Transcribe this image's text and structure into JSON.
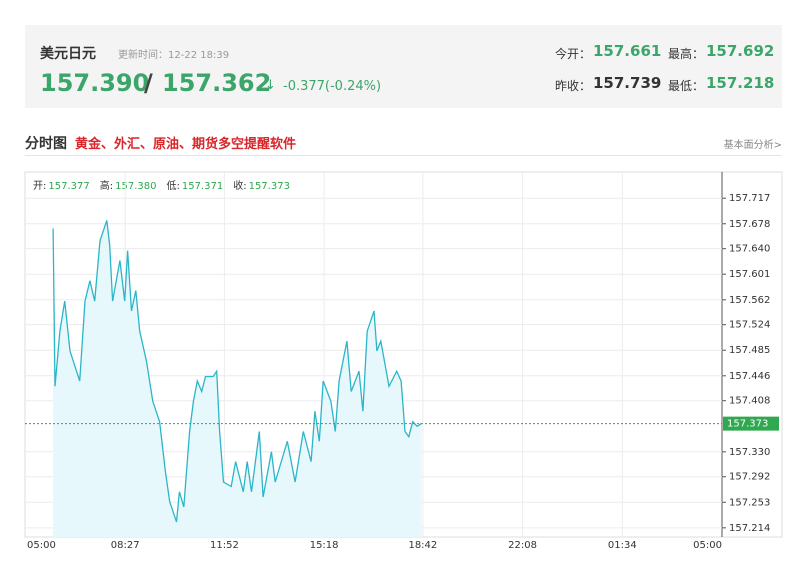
{
  "header": {
    "name": "美元日元",
    "update_time": "更新时间：12-22 18:39",
    "bid": "157.390",
    "separator": "/",
    "ask": "157.362",
    "arrow": "↓",
    "change": "-0.377(-0.24%)",
    "stats": [
      {
        "label": "今开：",
        "value": "157.661"
      },
      {
        "label": "最高：",
        "value": "157.692"
      },
      {
        "label": "昨收：",
        "value": "157.739"
      },
      {
        "label": "最低：",
        "value": "157.218"
      }
    ]
  },
  "section": {
    "title": "分时图",
    "promo": "黄金、外汇、原油、期货多空提醒软件",
    "link": "基本面分析>"
  },
  "quote_bar": [
    {
      "label": "开:",
      "value": "157.377"
    },
    {
      "label": "高:",
      "value": "157.380"
    },
    {
      "label": "低:",
      "value": "157.371"
    },
    {
      "label": "收:",
      "value": "157.373"
    }
  ],
  "chart_data": {
    "type": "line",
    "color": "#2bb5c9",
    "fill": "#e6f8fb",
    "grid": true,
    "x": [
      "05:58",
      "06:02",
      "06:12",
      "06:22",
      "06:33",
      "06:53",
      "07:04",
      "07:14",
      "07:24",
      "07:35",
      "07:49",
      "07:55",
      "08:01",
      "08:16",
      "08:26",
      "08:32",
      "08:40",
      "08:49",
      "08:57",
      "09:11",
      "09:24",
      "09:38",
      "09:50",
      "09:59",
      "10:13",
      "10:19",
      "10:28",
      "10:40",
      "10:48",
      "10:56",
      "11:05",
      "11:13",
      "11:29",
      "11:36",
      "11:42",
      "11:50",
      "12:06",
      "12:15",
      "12:31",
      "12:39",
      "12:48",
      "13:04",
      "13:12",
      "13:29",
      "13:37",
      "14:02",
      "14:18",
      "14:35",
      "14:51",
      "14:59",
      "15:08",
      "15:16",
      "15:32",
      "15:41",
      "15:49",
      "16:05",
      "16:14",
      "16:30",
      "16:38",
      "16:47",
      "17:01",
      "17:07",
      "17:15",
      "17:32",
      "17:48",
      "17:57",
      "18:05",
      "18:13",
      "18:21",
      "18:30",
      "18:39"
    ],
    "values": [
      157.671,
      157.43,
      157.514,
      157.56,
      157.484,
      157.438,
      157.56,
      157.591,
      157.56,
      157.652,
      157.683,
      157.645,
      157.56,
      157.622,
      157.56,
      157.637,
      157.545,
      157.576,
      157.514,
      157.468,
      157.407,
      157.376,
      157.3,
      157.254,
      157.223,
      157.269,
      157.246,
      157.361,
      157.407,
      157.438,
      157.422,
      157.445,
      157.445,
      157.453,
      157.361,
      157.284,
      157.277,
      157.315,
      157.269,
      157.315,
      157.269,
      157.361,
      157.261,
      157.33,
      157.284,
      157.346,
      157.284,
      157.361,
      157.315,
      157.392,
      157.346,
      157.438,
      157.407,
      157.361,
      157.438,
      157.499,
      157.422,
      157.453,
      157.392,
      157.514,
      157.545,
      157.484,
      157.499,
      157.43,
      157.453,
      157.438,
      157.361,
      157.353,
      157.376,
      157.369,
      157.373
    ],
    "ylim": [
      157.2,
      157.757
    ],
    "yticks": [
      157.214,
      157.253,
      157.292,
      {
        "value": 157.33,
        "label": "157.330"
      },
      157.408,
      157.446,
      157.485,
      157.524,
      157.562,
      157.601,
      {
        "value": 157.64,
        "label": "157.640"
      },
      157.678,
      157.717
    ],
    "last_price": 157.373,
    "last_color": "#2fa84f",
    "xticks": [
      "05:00",
      "08:27",
      "11:52",
      "15:18",
      "18:42",
      "22:08",
      "01:34",
      "05:00"
    ]
  }
}
